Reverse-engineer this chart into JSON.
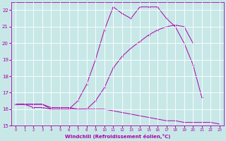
{
  "x": [
    0,
    1,
    2,
    3,
    4,
    5,
    6,
    7,
    8,
    9,
    10,
    11,
    12,
    13,
    14,
    15,
    16,
    17,
    18,
    19,
    20,
    21,
    22,
    23
  ],
  "line1_y": [
    16.3,
    16.3,
    16.3,
    16.3,
    16.0,
    16.0,
    16.0,
    16.0,
    16.0,
    16.0,
    16.0,
    15.9,
    15.8,
    15.7,
    15.6,
    15.5,
    15.4,
    15.3,
    15.3,
    15.2,
    15.2,
    15.2,
    15.2,
    15.1
  ],
  "line2_y": [
    16.3,
    16.3,
    16.1,
    16.1,
    16.0,
    16.0,
    16.0,
    16.5,
    17.5,
    19.0,
    20.8,
    22.2,
    21.8,
    21.5,
    22.2,
    22.2,
    22.2,
    21.5,
    21.0,
    20.0,
    18.7,
    16.7,
    null,
    null
  ],
  "line3_y": [
    16.3,
    16.3,
    16.3,
    16.3,
    16.1,
    16.1,
    16.1,
    16.0,
    16.0,
    16.5,
    17.3,
    18.5,
    19.2,
    19.7,
    20.1,
    20.5,
    20.8,
    21.0,
    21.1,
    21.0,
    20.0,
    null,
    null,
    null
  ],
  "color": "#aa00aa",
  "bg_color": "#c8e8e8",
  "grid_color": "#ffffff",
  "xlim": [
    -0.5,
    23.5
  ],
  "ylim": [
    15,
    22.5
  ],
  "xlabel": "Windchill (Refroidissement éolien,°C)",
  "yticks": [
    15,
    16,
    17,
    18,
    19,
    20,
    21,
    22
  ],
  "xticks": [
    0,
    1,
    2,
    3,
    4,
    5,
    6,
    7,
    8,
    9,
    10,
    11,
    12,
    13,
    14,
    15,
    16,
    17,
    18,
    19,
    20,
    21,
    22,
    23
  ]
}
